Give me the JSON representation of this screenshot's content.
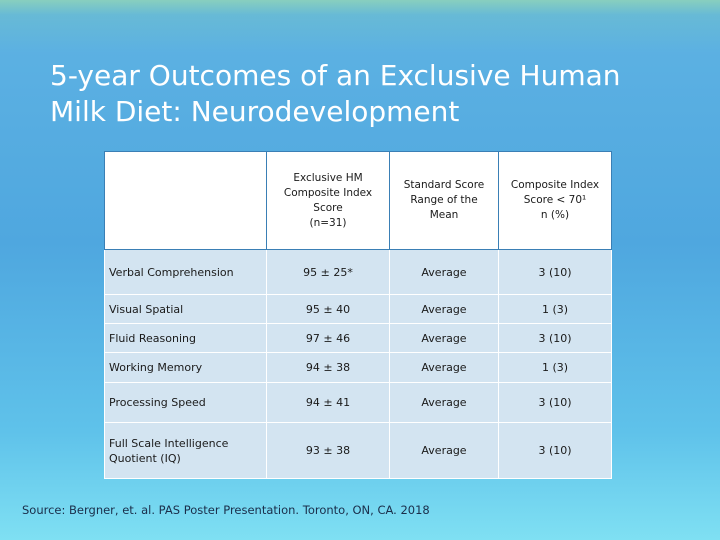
{
  "title": {
    "line1": "5-year Outcomes of an Exclusive Human",
    "line2": "Milk Diet: Neurodevelopment"
  },
  "table": {
    "headers": [
      {
        "lines": [
          ""
        ]
      },
      {
        "lines": [
          "Exclusive HM",
          "Composite Index",
          "Score",
          "(n=31)"
        ]
      },
      {
        "lines": [
          "Standard Score",
          "Range of the",
          "Mean"
        ]
      },
      {
        "lines": [
          "Composite Index",
          "Score < 70¹",
          "n (%)"
        ]
      }
    ],
    "rows": [
      {
        "label": "Verbal Comprehension",
        "score": "95 ± 25*",
        "range": "Average",
        "count": "3 (10)"
      },
      {
        "label": "Visual Spatial",
        "score": "95 ± 40",
        "range": "Average",
        "count": "1 (3)"
      },
      {
        "label": "Fluid Reasoning",
        "score": "97 ± 46",
        "range": "Average",
        "count": "3 (10)"
      },
      {
        "label": "Working Memory",
        "score": "94 ± 38",
        "range": "Average",
        "count": "1 (3)"
      },
      {
        "label": "Processing Speed",
        "score": "94 ± 41",
        "range": "Average",
        "count": "3 (10)"
      },
      {
        "label": "Full Scale Intelligence Quotient (IQ)",
        "score": "93 ± 38",
        "range": "Average",
        "count": "3 (10)"
      }
    ]
  },
  "source": "Source: Bergner, et. al. PAS Poster Presentation. Toronto,  ON, CA. 2018",
  "colors": {
    "background": "#4fa7df",
    "header_cell": "#ffffff",
    "body_cell": "#d3e4f1",
    "title_text": "#ffffff"
  }
}
